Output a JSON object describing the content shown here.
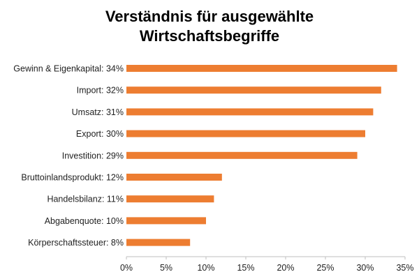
{
  "chart_data": {
    "type": "bar",
    "orientation": "horizontal",
    "title_lines": [
      "Verständnis für ausgewählte",
      "Wirtschaftsbegriffe"
    ],
    "categories": [
      "Gewinn & Eigenkapital",
      "Import",
      "Umsatz",
      "Export",
      "Investition",
      "Bruttoinlandsprodukt",
      "Handelsbilanz",
      "Abgabenquote",
      "Körperschaftssteuer"
    ],
    "category_labels": [
      "Gewinn & Eigenkapital: 34%",
      "Import: 32%",
      "Umsatz: 31%",
      "Export: 30%",
      "Investition: 29%",
      "Bruttoinlandsprodukt: 12%",
      "Handelsbilanz: 11%",
      "Abgabenquote: 10%",
      "Körperschaftssteuer: 8%"
    ],
    "values": [
      34,
      32,
      31,
      30,
      29,
      12,
      11,
      10,
      8
    ],
    "unit": "%",
    "xlim": [
      0,
      35
    ],
    "x_ticks": [
      0,
      5,
      10,
      15,
      20,
      25,
      30,
      35
    ],
    "x_tick_labels": [
      "0%",
      "5%",
      "10%",
      "15%",
      "20%",
      "25%",
      "30%",
      "35%"
    ],
    "xlabel": "",
    "ylabel": "",
    "grid": false,
    "bar_color": "#ED7D31",
    "axis_color": "#BFBFBF"
  }
}
